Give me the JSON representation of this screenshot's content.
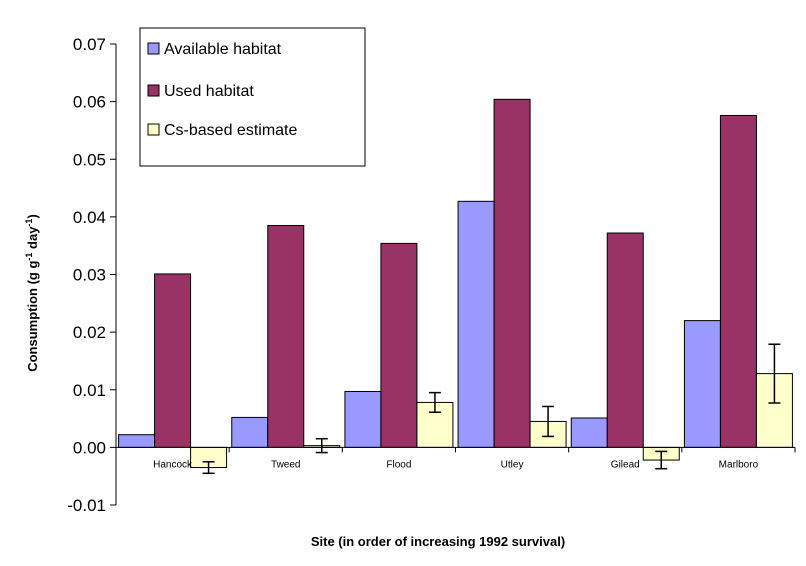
{
  "chart_data": {
    "type": "bar",
    "title": "",
    "xlabel": "Site (in order of increasing 1992 survival)",
    "ylabel_main": "Consumption (g g",
    "ylabel_sup1": "-1",
    "ylabel_mid": " day",
    "ylabel_sup2": "-1",
    "ylabel_end": ")",
    "ylim": [
      -0.01,
      0.07
    ],
    "yticks": [
      -0.01,
      0.0,
      0.01,
      0.02,
      0.03,
      0.04,
      0.05,
      0.06,
      0.07
    ],
    "ytick_labels": [
      "-0.01",
      "0.00",
      "0.01",
      "0.02",
      "0.03",
      "0.04",
      "0.05",
      "0.06",
      "0.07"
    ],
    "categories": [
      "Hancock",
      "Tweed",
      "Flood",
      "Utley",
      "Gilead",
      "Marlboro"
    ],
    "series": [
      {
        "name": "Available habitat",
        "color": "#9999ff",
        "values": [
          0.0022,
          0.0052,
          0.0097,
          0.0427,
          0.0051,
          0.022
        ]
      },
      {
        "name": "Used habitat",
        "color": "#993366",
        "values": [
          0.0301,
          0.0385,
          0.0354,
          0.0604,
          0.0372,
          0.0576
        ]
      },
      {
        "name": "Cs-based estimate",
        "color": "#ffffcc",
        "values": [
          -0.0035,
          0.0003,
          0.0078,
          0.0045,
          -0.0022,
          0.0128
        ],
        "errors": [
          0.001,
          0.0012,
          0.0017,
          0.0026,
          0.0015,
          0.0051
        ]
      }
    ],
    "legend_position": "top-left",
    "grid": false
  }
}
